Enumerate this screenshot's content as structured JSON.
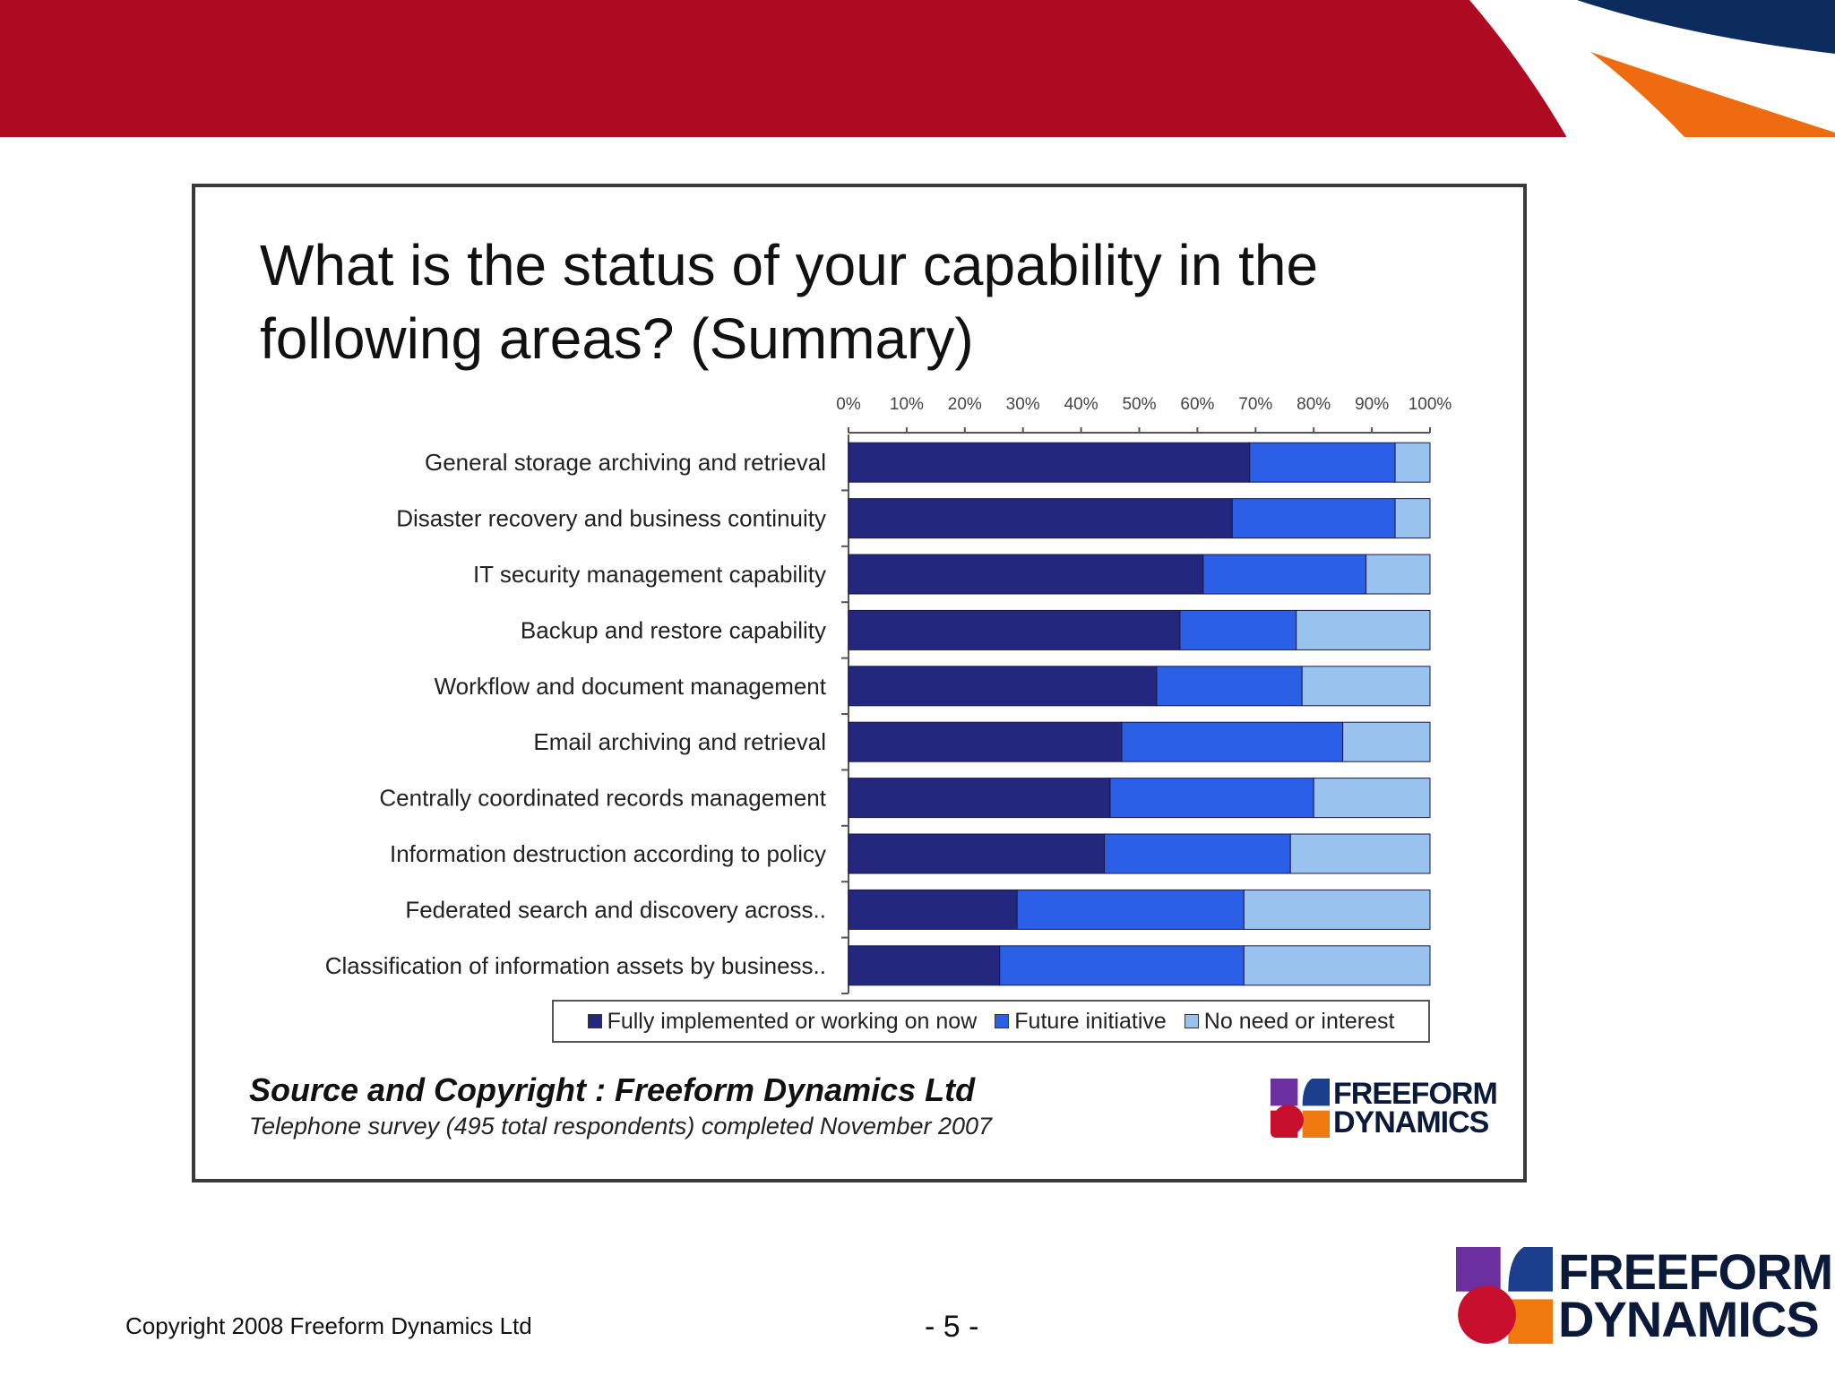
{
  "slide": {
    "copyright": "Copyright 2008 Freeform Dynamics Ltd",
    "page_number": "- 5 -"
  },
  "logo": {
    "line1": "FREEFORM",
    "line2": "DYNAMICS"
  },
  "source": {
    "title": "Source and Copyright : Freeform Dynamics Ltd",
    "subtitle": "Telephone survey (495 total respondents) completed November 2007"
  },
  "colors": {
    "banner_red": "#ae0b22",
    "banner_navy": "#0c2c5e",
    "banner_orange": "#ef6b10",
    "series_fully": "#24277e",
    "series_future": "#2b5fe6",
    "series_noneed": "#99c3ee"
  },
  "chart_data": {
    "type": "bar",
    "orientation": "horizontal",
    "stacked": true,
    "title": "What is the status of your capability in the following areas? (Summary)",
    "xlim": [
      0,
      100
    ],
    "x_tick_labels": [
      "0%",
      "10%",
      "20%",
      "30%",
      "40%",
      "50%",
      "60%",
      "70%",
      "80%",
      "90%",
      "100%"
    ],
    "legend_position": "bottom",
    "categories": [
      "General storage archiving and retrieval",
      "Disaster recovery and business continuity",
      "IT security management capability",
      "Backup and restore capability",
      "Workflow and document management",
      "Email archiving and retrieval",
      "Centrally coordinated records management",
      "Information destruction according to policy",
      "Federated search and discovery across..",
      "Classification of information assets by business.."
    ],
    "series": [
      {
        "name": "Fully implemented or working on now",
        "values": [
          69,
          66,
          61,
          57,
          53,
          47,
          45,
          44,
          29,
          26
        ]
      },
      {
        "name": "Future initiative",
        "values": [
          25,
          28,
          28,
          20,
          25,
          38,
          35,
          32,
          39,
          42
        ]
      },
      {
        "name": "No need or interest",
        "values": [
          6,
          6,
          11,
          23,
          22,
          15,
          20,
          24,
          32,
          32
        ]
      }
    ]
  }
}
